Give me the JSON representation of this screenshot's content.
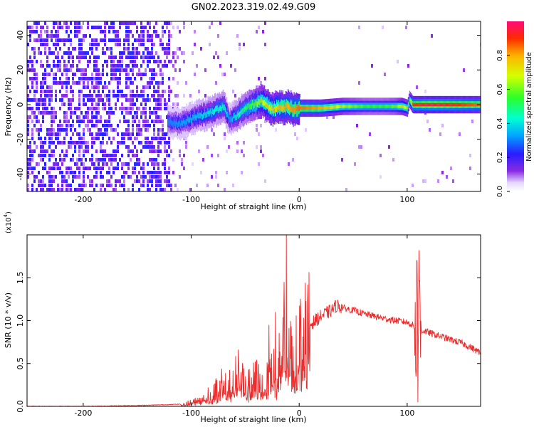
{
  "figure": {
    "title": "GN02.2023.319.02.49.G09"
  },
  "colors": {
    "snr_line": "#ee2b2b",
    "frame": "#000000",
    "background": "#ffffff"
  },
  "chart_data": [
    {
      "type": "heatmap",
      "title": "GN02.2023.319.02.49.G09",
      "xlabel": "Height of straight line (km)",
      "ylabel": "Frequency (Hz)",
      "xlim": [
        -252,
        168
      ],
      "ylim": [
        -50,
        48
      ],
      "x_ticks": [
        -200,
        -100,
        0,
        100
      ],
      "y_ticks": [
        -40,
        -20,
        0,
        20,
        40
      ],
      "colormap": "rainbow (violet to red)",
      "colorbar": {
        "label": "Normalized spectral amplitude",
        "range": [
          0.0,
          1.0
        ],
        "ticks": [
          0.0,
          0.2,
          0.4,
          0.6,
          0.8
        ]
      },
      "ridge": {
        "x": [
          -120,
          -110,
          -100,
          -90,
          -80,
          -70,
          -65,
          -60,
          -50,
          -40,
          -35,
          -30,
          -25,
          -20,
          -15,
          -10,
          -5,
          0,
          20,
          40,
          60,
          80,
          90,
          95,
          100,
          102,
          105,
          120,
          140,
          168
        ],
        "y": [
          -10,
          -11,
          -8,
          -6,
          -4,
          -1,
          -9,
          -7,
          -2,
          1,
          2,
          0,
          -3,
          -1,
          -2,
          -1,
          -3,
          -2,
          -2,
          -1,
          -1,
          -1,
          -1,
          -1,
          -2,
          3,
          0,
          0,
          0,
          0
        ],
        "amplitude": [
          0.3,
          0.32,
          0.35,
          0.38,
          0.42,
          0.45,
          0.3,
          0.4,
          0.5,
          0.6,
          0.65,
          0.7,
          0.72,
          0.75,
          0.78,
          0.8,
          0.82,
          0.85,
          0.8,
          0.65,
          0.55,
          0.55,
          0.6,
          0.7,
          0.65,
          0.55,
          0.9,
          0.95,
          0.92,
          0.85
        ]
      }
    },
    {
      "type": "line",
      "xlabel": "Height of straight line (km)",
      "ylabel": "SNR (10 * v/v)",
      "y_exponent": "(x10",
      "y_exponent_power": "4",
      "y_exponent_close": ")",
      "xlim": [
        -252,
        168
      ],
      "ylim": [
        0,
        2.0
      ],
      "x_ticks": [
        -200,
        -100,
        0,
        100
      ],
      "y_ticks": [
        0.0,
        0.5,
        1.0,
        1.5
      ],
      "y_tick_labels": [
        "0.0",
        "0.5",
        "1.0",
        "1.5"
      ],
      "series": [
        {
          "x": [
            -252,
            -200,
            -150,
            -120,
            -105,
            -100,
            -90,
            -80,
            -70,
            -60,
            -55,
            -50,
            -45,
            -40,
            -35,
            -30,
            -25,
            -20,
            -15,
            -12,
            -10,
            -5,
            0,
            10,
            20,
            30,
            35,
            40,
            50,
            60,
            70,
            80,
            90,
            100,
            105,
            108,
            110,
            112,
            115,
            120,
            130,
            140,
            150,
            160,
            168
          ],
          "y": [
            0.0,
            0.0,
            0.01,
            0.02,
            0.03,
            0.05,
            0.1,
            0.15,
            0.25,
            0.3,
            0.45,
            0.2,
            0.25,
            0.3,
            0.35,
            0.4,
            0.45,
            0.5,
            0.6,
            0.75,
            0.7,
            0.65,
            0.75,
            0.95,
            1.05,
            1.12,
            1.18,
            1.15,
            1.12,
            1.08,
            1.05,
            1.02,
            1.0,
            0.98,
            0.95,
            0.9,
            0.9,
            0.88,
            0.88,
            0.86,
            0.82,
            0.78,
            0.74,
            0.68,
            0.62
          ],
          "spikes": [
            {
              "x": -12,
              "y": 2.0
            },
            {
              "x": -14,
              "y": 1.45
            },
            {
              "x": -22,
              "y": 1.1
            },
            {
              "x": -28,
              "y": 0.95
            },
            {
              "x": 8,
              "y": 1.42
            },
            {
              "x": 109,
              "y": 1.7
            },
            {
              "x": 111,
              "y": 1.82
            },
            {
              "x": 110,
              "y": 0.05
            }
          ]
        }
      ]
    }
  ]
}
